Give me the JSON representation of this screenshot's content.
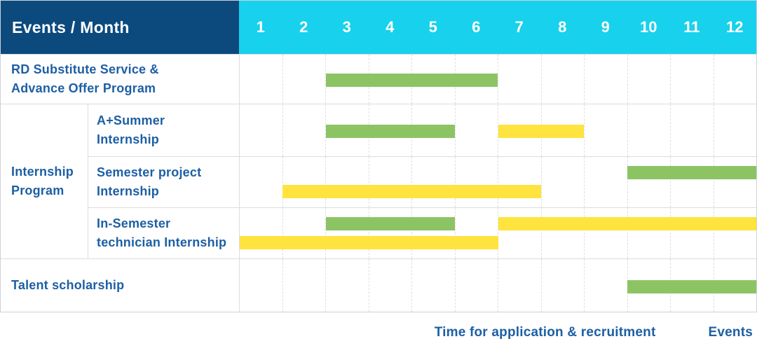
{
  "header": {
    "label_column": "Events / Month",
    "months": [
      "1",
      "2",
      "3",
      "4",
      "5",
      "6",
      "7",
      "8",
      "9",
      "10",
      "11",
      "12"
    ]
  },
  "colors": {
    "header_bg": "#0c4a7e",
    "month_header_bg": "#18d1ed",
    "green_bar": "#8cc464",
    "yellow_bar": "#ffe33e",
    "label_text": "#1d5fa4",
    "grid_line": "#dddddd"
  },
  "legend": {
    "items": [
      {
        "name": "Time for application & recruitment",
        "color_key": "green_bar"
      },
      {
        "name": "Events",
        "color_key": "yellow_bar"
      }
    ]
  },
  "chart_data": {
    "type": "gantt",
    "x_unit": "month",
    "x_min": 1,
    "x_max": 12,
    "grid": "dashed-vertical",
    "legend_position": "bottom-right",
    "series_legend": [
      "Time for application & recruitment",
      "Events"
    ],
    "rows": [
      {
        "group": "",
        "label": "RD Substitute Service &\nAdvance Offer Program",
        "bars": [
          {
            "series": "Time for application & recruitment",
            "color": "green",
            "start_month": 3,
            "end_month": 6,
            "lane": "center"
          }
        ]
      },
      {
        "group": "Internship\nProgram",
        "label": "A+Summer\nInternship",
        "bars": [
          {
            "series": "Time for application & recruitment",
            "color": "green",
            "start_month": 3,
            "end_month": 5,
            "lane": "center"
          },
          {
            "series": "Events",
            "color": "yellow",
            "start_month": 7,
            "end_month": 8,
            "lane": "center"
          }
        ]
      },
      {
        "group": "Internship\nProgram",
        "label": "Semester project\nInternship",
        "bars": [
          {
            "series": "Time for application & recruitment",
            "color": "green",
            "start_month": 10,
            "end_month": 12,
            "lane": "top"
          },
          {
            "series": "Events",
            "color": "yellow",
            "start_month": 2,
            "end_month": 7,
            "lane": "bottom"
          }
        ]
      },
      {
        "group": "Internship\nProgram",
        "label": "In-Semester\ntechnician Internship",
        "bars": [
          {
            "series": "Time for application & recruitment",
            "color": "green",
            "start_month": 3,
            "end_month": 5,
            "lane": "top"
          },
          {
            "series": "Events",
            "color": "yellow",
            "start_month": 7,
            "end_month": 12,
            "lane": "top"
          },
          {
            "series": "Events",
            "color": "yellow",
            "start_month": 1,
            "end_month": 6,
            "lane": "bottom"
          }
        ]
      },
      {
        "group": "",
        "label": "Talent scholarship",
        "bars": [
          {
            "series": "Time for application & recruitment",
            "color": "green",
            "start_month": 10,
            "end_month": 12,
            "lane": "center"
          }
        ]
      }
    ]
  }
}
